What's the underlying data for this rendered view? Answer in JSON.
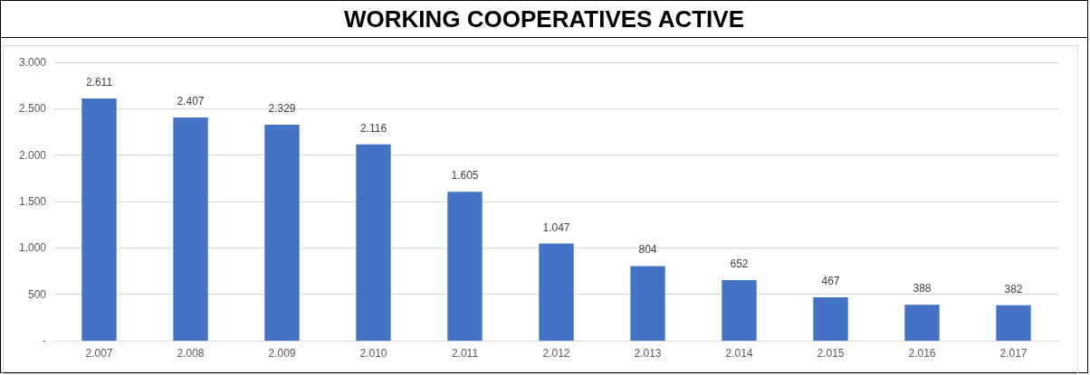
{
  "chart_data": {
    "type": "bar",
    "title": "WORKING COOPERATIVES ACTIVE",
    "categories": [
      "2.007",
      "2.008",
      "2.009",
      "2.010",
      "2.011",
      "2.012",
      "2.013",
      "2.014",
      "2.015",
      "2.016",
      "2.017"
    ],
    "values": [
      2611,
      2407,
      2329,
      2116,
      1605,
      1047,
      804,
      652,
      467,
      388,
      382
    ],
    "value_labels": [
      "2.611",
      "2.407",
      "2.329",
      "2.116",
      "1.605",
      "1.047",
      "804",
      "652",
      "467",
      "388",
      "382"
    ],
    "color": "#4472c4",
    "ylim": [
      0,
      3000
    ],
    "yticks": [
      {
        "value": 0,
        "label": "-"
      },
      {
        "value": 500,
        "label": "500"
      },
      {
        "value": 1000,
        "label": "1.000"
      },
      {
        "value": 1500,
        "label": "1.500"
      },
      {
        "value": 2000,
        "label": "2.000"
      },
      {
        "value": 2500,
        "label": "2.500"
      },
      {
        "value": 3000,
        "label": "3.000"
      }
    ],
    "grid": "y"
  }
}
